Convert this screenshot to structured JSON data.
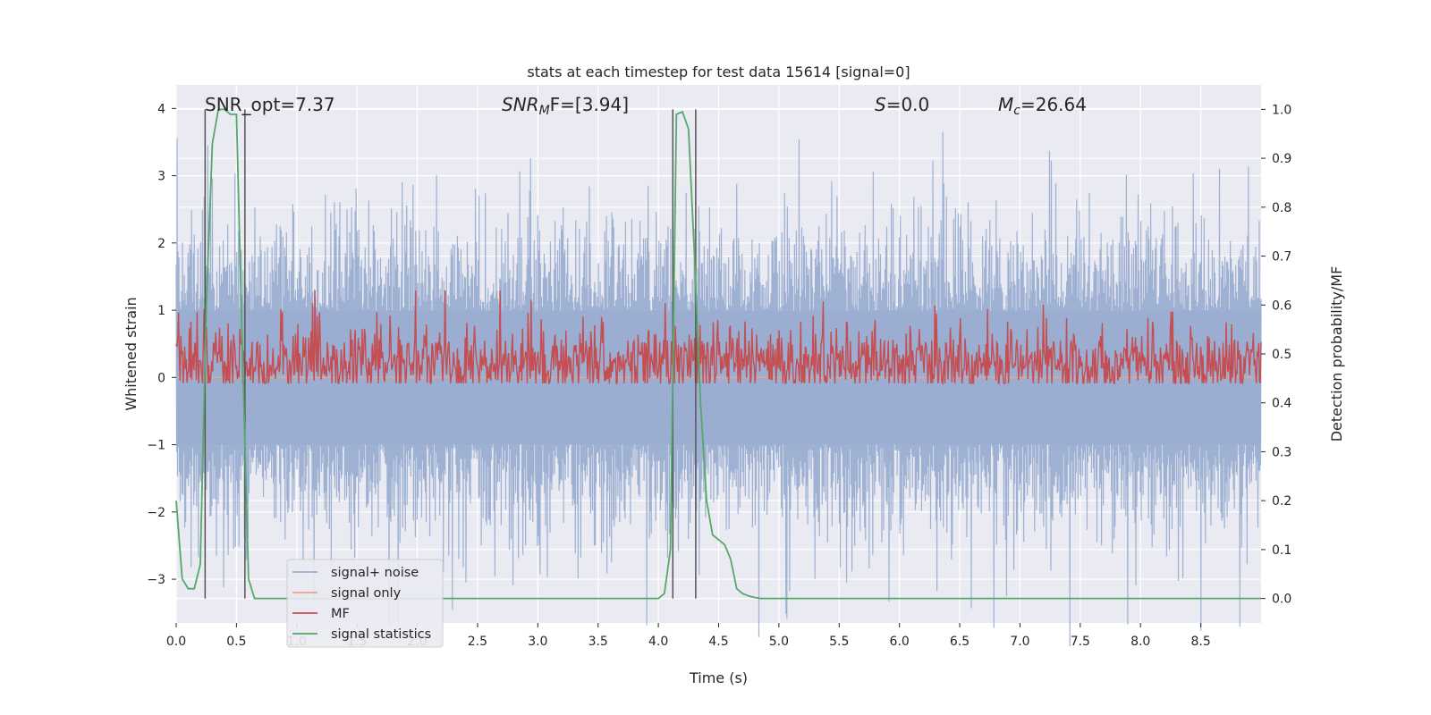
{
  "chart_data": {
    "type": "line",
    "title": "stats at each timestep for test data 15614 [signal=0]",
    "xlabel": "Time (s)",
    "ylabel_left": "Whitened strain",
    "ylabel_right": "Detection probability/MF",
    "xlim": [
      0.0,
      9.0
    ],
    "ylim_left": [
      -3.65,
      4.35
    ],
    "ylim_right": [
      -0.05,
      1.05
    ],
    "x_ticks": [
      "0.0",
      "0.5",
      "1.0",
      "1.5",
      "2.0",
      "2.5",
      "3.0",
      "3.5",
      "4.0",
      "4.5",
      "5.0",
      "5.5",
      "6.0",
      "6.5",
      "7.0",
      "7.5",
      "8.0",
      "8.5"
    ],
    "y_left_ticks": [
      "−3",
      "−2",
      "−1",
      "0",
      "1",
      "2",
      "3",
      "4"
    ],
    "y_right_ticks": [
      "0.0",
      "0.1",
      "0.2",
      "0.3",
      "0.4",
      "0.5",
      "0.6",
      "0.7",
      "0.8",
      "0.9",
      "1.0"
    ],
    "grid": true,
    "legend_position": "lower-left",
    "annotations": [
      {
        "id": "snr-opt",
        "main": "SNR_opt=7.37",
        "italic": false,
        "sub": "",
        "rest": ""
      },
      {
        "id": "snr-mf",
        "main": "SNR",
        "italic": true,
        "sub": "M",
        "rest": "F=[3.94]"
      },
      {
        "id": "s-value",
        "main": "S",
        "italic": true,
        "sub": "",
        "rest": "=0.0"
      },
      {
        "id": "mc-value",
        "main": "M",
        "italic": true,
        "sub": "c",
        "rest": "=26.64"
      }
    ],
    "series": [
      {
        "name": "signal+ noise",
        "color": "#9aaed1",
        "description_type": "noise",
        "typical_peak": 2.0,
        "max_peak": 4.0
      },
      {
        "name": "signal only",
        "color": "#e8a58a",
        "axis": "left",
        "x": [
          0.0,
          9.0
        ],
        "y": [
          0.0,
          0.0
        ]
      },
      {
        "name": "MF",
        "color": "#c44e52",
        "axis": "right",
        "description_type": "noise",
        "baseline": 0.48,
        "max_peak": 0.63
      },
      {
        "name": "signal statistics",
        "color": "#55a868",
        "axis": "right",
        "x": [
          0.0,
          0.05,
          0.1,
          0.15,
          0.2,
          0.25,
          0.3,
          0.35,
          0.4,
          0.45,
          0.5,
          0.55,
          0.6,
          0.65,
          0.7,
          0.75,
          1.0,
          2.0,
          3.0,
          3.9,
          4.0,
          4.05,
          4.1,
          4.15,
          4.2,
          4.25,
          4.3,
          4.35,
          4.4,
          4.45,
          4.5,
          4.55,
          4.6,
          4.65,
          4.7,
          4.75,
          4.8,
          4.85,
          4.9,
          5.0,
          6.0,
          7.0,
          8.0,
          9.0
        ],
        "y": [
          0.2,
          0.04,
          0.02,
          0.02,
          0.07,
          0.6,
          0.93,
          1.0,
          1.0,
          0.99,
          0.99,
          0.5,
          0.04,
          0.0,
          0.0,
          0.0,
          0.0,
          0.0,
          0.0,
          0.0,
          0.0,
          0.01,
          0.1,
          0.99,
          0.995,
          0.96,
          0.7,
          0.4,
          0.2,
          0.13,
          0.12,
          0.11,
          0.08,
          0.02,
          0.01,
          0.005,
          0.002,
          0.0,
          0.0,
          0.0,
          0.0,
          0.0,
          0.0,
          0.0
        ]
      }
    ],
    "vertical_markers": [
      0.24,
      0.57,
      4.12,
      4.31
    ],
    "marker_color": "#555555"
  }
}
